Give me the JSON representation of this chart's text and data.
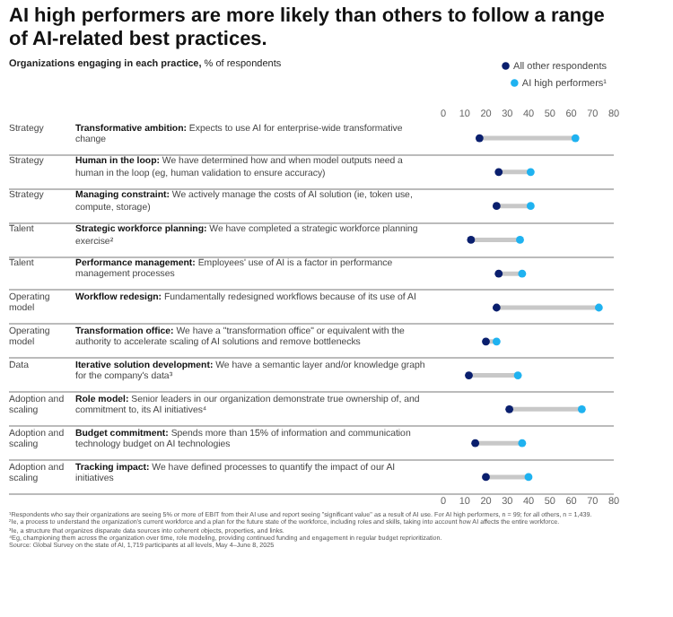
{
  "chart_data": {
    "type": "scatter",
    "title": "AI high performers are more likely than others to follow a range of AI-related best practices.",
    "subtitle": "Organizations engaging in each practice, % of respondents",
    "categories": [
      "Transformative ambition: Expects to use AI for enterprise-wide transformative change",
      "Human in the loop: We have determined how and when model outputs need a human in the loop (eg, human validation to ensure accuracy)",
      "Managing constraint: We actively manage the costs of AI solution (ie, token use, compute, storage)",
      "Strategic workforce planning: We have completed a strategic workforce planning exercise²",
      "Performance management: Employees' use of AI is a factor in performance management processes",
      "Workflow redesign: Fundamentally redesigned workflows because of its use of AI",
      "Transformation office: We have a \"transformation office\" or equivalent with the authority to accelerate scaling of AI solutions and remove bottlenecks",
      "Iterative solution development: We have a semantic layer and/or knowledge graph for the company's data³",
      "Role model: Senior leaders in our organization demonstrate true ownership of, and commitment to, its AI initiatives⁴",
      "Budget commitment: Spends more than 15% of information and communication technology budget on AI technologies",
      "Tracking impact: We have defined processes to quantify the impact of our AI initiatives"
    ],
    "series": [
      {
        "name": "All other respondents",
        "color": "#0a1f6e",
        "values": [
          17,
          26,
          25,
          13,
          26,
          25,
          20,
          12,
          31,
          15,
          20
        ]
      },
      {
        "name": "AI high performers¹",
        "color": "#1fb2f0",
        "values": [
          62,
          41,
          41,
          36,
          37,
          73,
          25,
          35,
          65,
          37,
          40
        ]
      }
    ],
    "xlim": [
      0,
      80
    ],
    "xticks": [
      0,
      10,
      20,
      30,
      40,
      50,
      60,
      70,
      80
    ],
    "x2lim": [
      0,
      80
    ],
    "x2ticks": [
      0,
      10,
      20,
      30,
      40,
      50,
      60,
      70,
      80
    ],
    "orientation": "horizontal",
    "legend": "top right",
    "marker": "circle",
    "annotations": [
      "Strategy",
      "Strategy",
      "Strategy",
      "Talent",
      "Talent",
      "Operating model",
      "Operating model",
      "Data",
      "Adoption and scaling",
      "Adoption and scaling",
      "Adoption and scaling",
      "¹Respondents who say their organizations are seeing 5% or more of EBIT from their AI use and report seeing \"significant value\" as a result of AI use. For AI high performers, n = 99; for all others, n = 1,439.",
      "²Ie, a process to understand the organization's current workforce and a plan for the future state of the workforce, including roles and skills, taking into account how AI affects the entire workforce.",
      "³Ie, a structure that organizes disparate data sources into coherent objects, properties, and links.",
      "⁴Eg, championing them across the organization over time, role modeling, providing continued funding and engagement in regular budget reprioritization.",
      "Source: Global Survey on the state of AI, 1,719 participants at all levels, May 4–June 8, 2025"
    ]
  }
}
